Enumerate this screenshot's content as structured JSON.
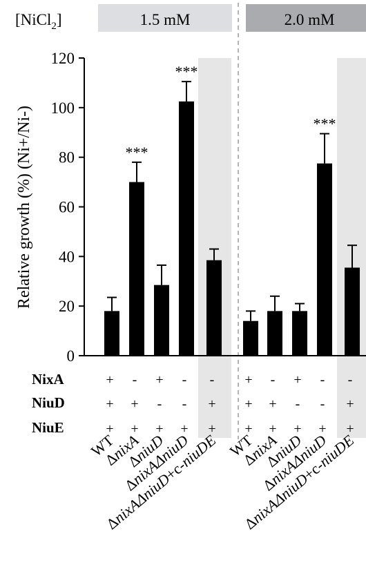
{
  "header": {
    "label": "[NiCl",
    "label_sub": "2",
    "label_close": "]",
    "conditions": [
      "1.5 mM",
      "2.0 mM"
    ],
    "colors": [
      "#dcdee1",
      "#a9abae"
    ]
  },
  "row_labels": [
    "NixA",
    "NiuD",
    "NiuE"
  ],
  "chart_data": {
    "type": "bar",
    "ylabel": "Relative growth (%) (Ni+/Ni-)",
    "ylim": [
      0,
      120
    ],
    "yticks": [
      "0",
      "20",
      "40",
      "60",
      "80",
      "100",
      "120"
    ],
    "strains": [
      {
        "prefix": "",
        "name": "WT",
        "suffix": ""
      },
      {
        "prefix": "Δ",
        "name": "nixA",
        "suffix": ""
      },
      {
        "prefix": "Δ",
        "name": "niuD",
        "suffix": ""
      },
      {
        "prefix": "Δ",
        "name": "nixAΔniuD",
        "suffix": ""
      },
      {
        "prefix": "Δ",
        "name": "nixAΔniuD",
        "suffix": "+c-niuDE"
      }
    ],
    "genotype": {
      "NixA": [
        "+",
        "-",
        "+",
        "-",
        "-"
      ],
      "NiuD": [
        "+",
        "+",
        "-",
        "-",
        "+"
      ],
      "NiuE": [
        "+",
        "+",
        "+",
        "+",
        "+"
      ]
    },
    "groups": [
      {
        "condition": "1.5 mM",
        "values": [
          18,
          70,
          28.5,
          102.5,
          38.5
        ],
        "errors": [
          5.5,
          8,
          8,
          8,
          4.5
        ],
        "significance": [
          "",
          "***",
          "",
          "***",
          ""
        ]
      },
      {
        "condition": "2.0 mM",
        "values": [
          14,
          18,
          18,
          77.5,
          35.5
        ],
        "errors": [
          4,
          6,
          3,
          12,
          9
        ],
        "significance": [
          "",
          "",
          "",
          "***",
          ""
        ]
      }
    ],
    "bar_color": "#000000",
    "highlight_color": "#e6e6e6",
    "divider_color": "#b4b4b4"
  }
}
